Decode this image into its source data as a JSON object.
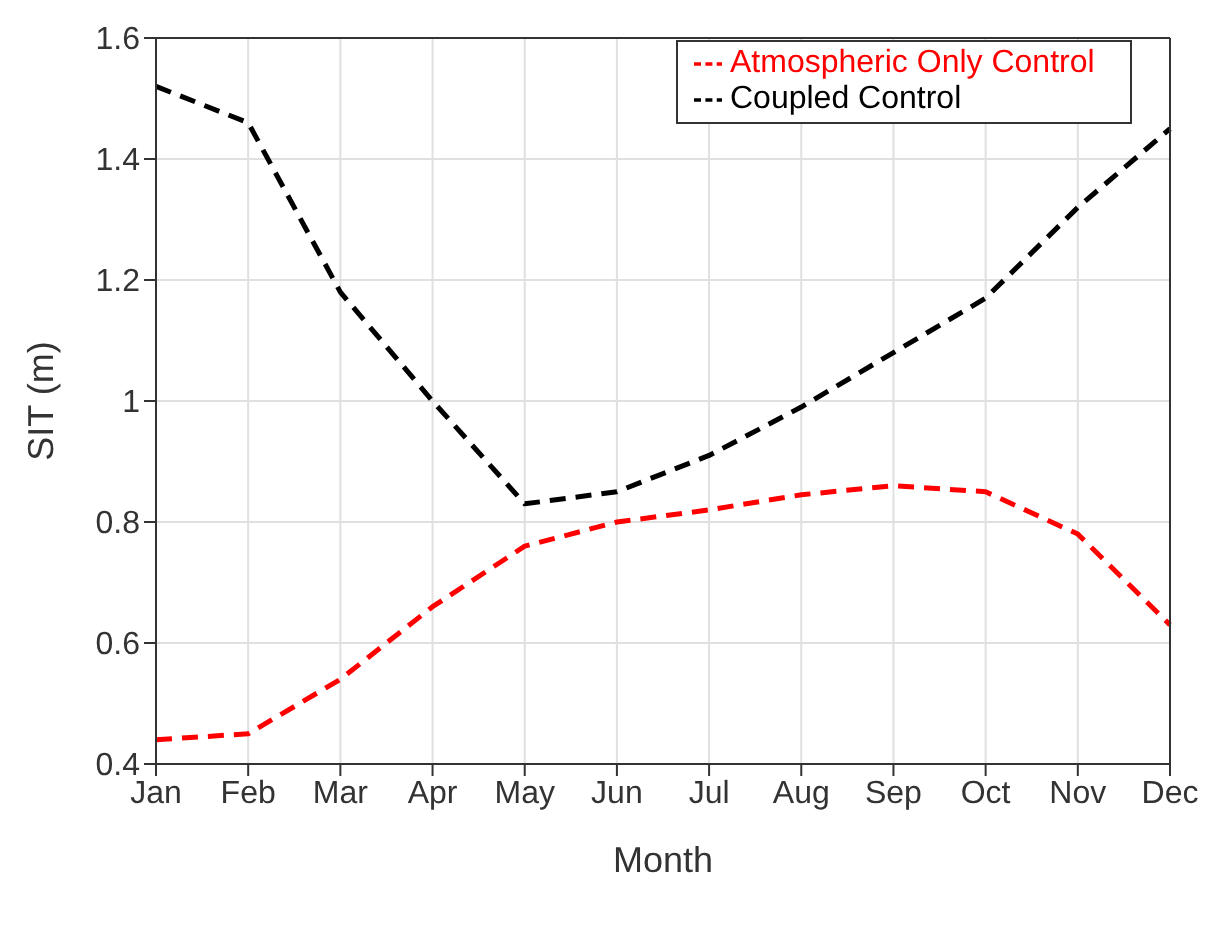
{
  "chart_data": {
    "type": "line",
    "xlabel": "Month",
    "ylabel": "SIT (m)",
    "categories": [
      "Jan",
      "Feb",
      "Mar",
      "Apr",
      "May",
      "Jun",
      "Jul",
      "Aug",
      "Sep",
      "Oct",
      "Nov",
      "Dec"
    ],
    "series": [
      {
        "name": "Atmospheric Only Control",
        "color": "#ff0000",
        "values": [
          0.44,
          0.45,
          0.54,
          0.66,
          0.76,
          0.8,
          0.82,
          0.845,
          0.86,
          0.85,
          0.78,
          0.63
        ]
      },
      {
        "name": "Coupled Control",
        "color": "#000000",
        "values": [
          1.52,
          1.46,
          1.18,
          1.0,
          0.83,
          0.85,
          0.91,
          0.99,
          1.08,
          1.17,
          1.32,
          1.45
        ]
      }
    ],
    "ylim": [
      0.4,
      1.6
    ],
    "yticks": [
      0.4,
      0.6,
      0.8,
      1,
      1.2,
      1.4,
      1.6
    ],
    "grid": true,
    "legend": "top right",
    "marker": "none",
    "line_style": "dashed"
  }
}
